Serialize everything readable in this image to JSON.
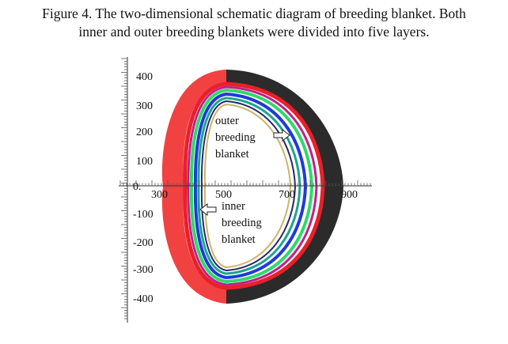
{
  "caption": {
    "line1": "Figure 4. The two-dimensional schematic diagram of breeding blanket. Both",
    "line2": "inner and outer breeding blankets were divided into five layers."
  },
  "axes": {
    "x_ticks": [
      "300",
      "500",
      "700",
      "900"
    ],
    "y_ticks": [
      "400",
      "300",
      "200",
      "100",
      "-100",
      "-200",
      "-300",
      "-400"
    ],
    "origin_label": "0."
  },
  "labels": {
    "outer": [
      "outer",
      "breeding",
      "blanket"
    ],
    "inner": [
      "inner",
      "breeding",
      "blanket"
    ]
  },
  "colors": {
    "inner_blanket": "#f24141",
    "outer_blanket": "#2b2b2b",
    "layer_blue": "#1f3bd6",
    "layer_green": "#2fd86a",
    "layer_magenta": "#c0208a",
    "layer_teal": "#1aa58f",
    "plasma_edge": "#c9b56a"
  }
}
